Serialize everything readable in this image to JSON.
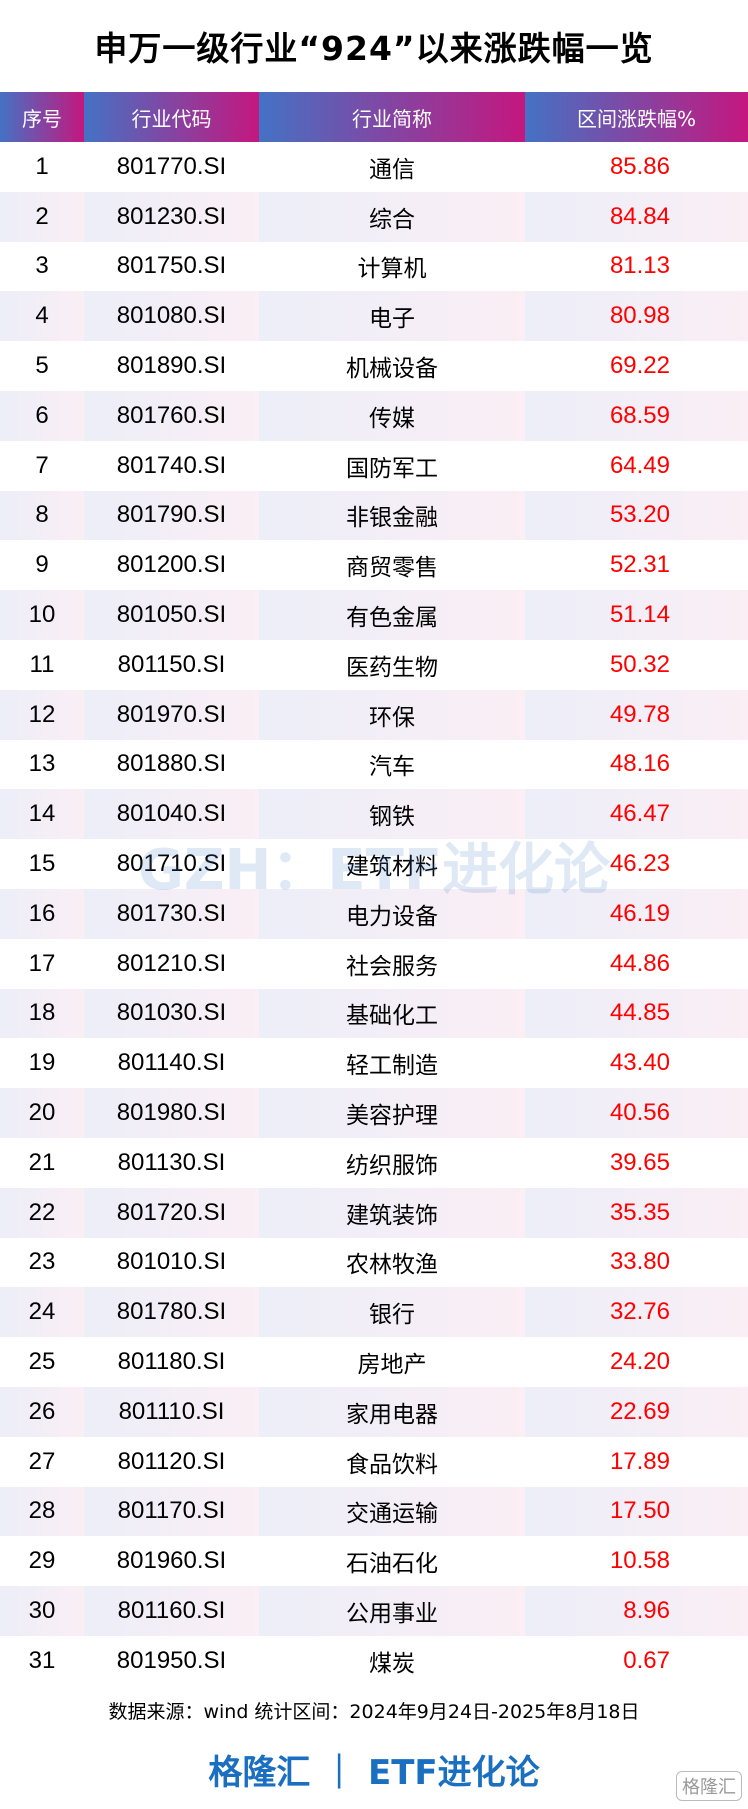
{
  "title": "申万一级行业“924”以来涨跌幅一览",
  "columns": [
    "序号",
    "行业代码",
    "行业简称",
    "区间涨跌幅%"
  ],
  "rows": [
    [
      "1",
      "801770.SI",
      "通信",
      "85.86"
    ],
    [
      "2",
      "801230.SI",
      "综合",
      "84.84"
    ],
    [
      "3",
      "801750.SI",
      "计算机",
      "81.13"
    ],
    [
      "4",
      "801080.SI",
      "电子",
      "80.98"
    ],
    [
      "5",
      "801890.SI",
      "机械设备",
      "69.22"
    ],
    [
      "6",
      "801760.SI",
      "传媒",
      "68.59"
    ],
    [
      "7",
      "801740.SI",
      "国防军工",
      "64.49"
    ],
    [
      "8",
      "801790.SI",
      "非银金融",
      "53.20"
    ],
    [
      "9",
      "801200.SI",
      "商贸零售",
      "52.31"
    ],
    [
      "10",
      "801050.SI",
      "有色金属",
      "51.14"
    ],
    [
      "11",
      "801150.SI",
      "医药生物",
      "50.32"
    ],
    [
      "12",
      "801970.SI",
      "环保",
      "49.78"
    ],
    [
      "13",
      "801880.SI",
      "汽车",
      "48.16"
    ],
    [
      "14",
      "801040.SI",
      "钢铁",
      "46.47"
    ],
    [
      "15",
      "801710.SI",
      "建筑材料",
      "46.23"
    ],
    [
      "16",
      "801730.SI",
      "电力设备",
      "46.19"
    ],
    [
      "17",
      "801210.SI",
      "社会服务",
      "44.86"
    ],
    [
      "18",
      "801030.SI",
      "基础化工",
      "44.85"
    ],
    [
      "19",
      "801140.SI",
      "轻工制造",
      "43.40"
    ],
    [
      "20",
      "801980.SI",
      "美容护理",
      "40.56"
    ],
    [
      "21",
      "801130.SI",
      "纺织服饰",
      "39.65"
    ],
    [
      "22",
      "801720.SI",
      "建筑装饰",
      "35.35"
    ],
    [
      "23",
      "801010.SI",
      "农林牧渔",
      "33.80"
    ],
    [
      "24",
      "801780.SI",
      "银行",
      "32.76"
    ],
    [
      "25",
      "801180.SI",
      "房地产",
      "24.20"
    ],
    [
      "26",
      "801110.SI",
      "家用电器",
      "22.69"
    ],
    [
      "27",
      "801120.SI",
      "食品饮料",
      "17.89"
    ],
    [
      "28",
      "801170.SI",
      "交通运输",
      "17.50"
    ],
    [
      "29",
      "801960.SI",
      "石油石化",
      "10.58"
    ],
    [
      "30",
      "801160.SI",
      "公用事业",
      "8.96"
    ],
    [
      "31",
      "801950.SI",
      "煤炭",
      "0.67"
    ]
  ],
  "watermark": "GZH：ETF进化论",
  "source": "数据来源：wind 统计区间：2024年9月24日-2025年8月18日",
  "brand": "格隆汇 ｜ ETF进化论",
  "logo": "格隆汇",
  "colors": {
    "header_start": "#4472c4",
    "header_end": "#c4177f",
    "value": "#ff0000",
    "brand": "#1a6fc0"
  }
}
